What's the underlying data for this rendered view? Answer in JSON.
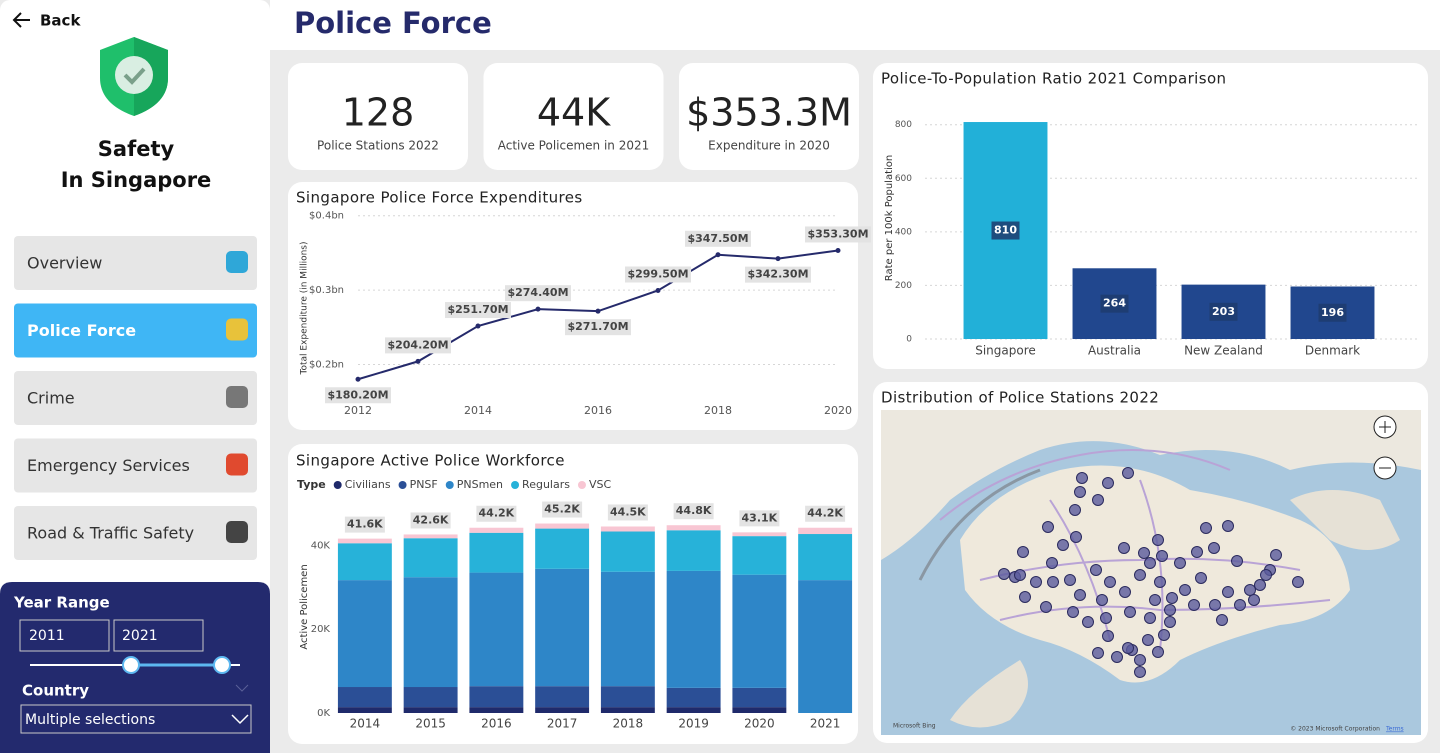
{
  "sidebar": {
    "back": "Back",
    "title_line1": "Safety",
    "title_line2": "In Singapore",
    "nav": [
      "Overview",
      "Police Force",
      "Crime",
      "Emergency Services",
      "Road & Traffic Safety"
    ],
    "selected": "Police Force",
    "year_range_label": "Year Range",
    "year_from": "2011",
    "year_to": "2021",
    "country_label": "Country",
    "country_value": "Multiple selections"
  },
  "header": {
    "title": "Police Force"
  },
  "kpis": [
    {
      "value": "128",
      "label": "Police Stations 2022"
    },
    {
      "value": "44K",
      "label": "Active Policemen in 2021"
    },
    {
      "value": "$353.3M",
      "label": "Expenditure in 2020"
    }
  ],
  "expenditure_chart": {
    "type": "line",
    "title": "Singapore Police Force Expenditures",
    "y_label": "Total Expenditure (in Millions)",
    "x": [
      2012,
      2013,
      2014,
      2015,
      2016,
      2017,
      2018,
      2019,
      2020
    ],
    "values": [
      180.2,
      204.2,
      251.7,
      274.4,
      271.7,
      299.5,
      347.5,
      342.3,
      353.3
    ],
    "value_labels": [
      "$180.20M",
      "$204.20M",
      "$251.70M",
      "$274.40M",
      "$271.70M",
      "$299.50M",
      "$347.50M",
      "$342.30M",
      "$353.30M"
    ],
    "color": "#252a6b",
    "xlim": [
      2012,
      2020
    ],
    "xticks": [
      2012,
      2014,
      2016,
      2018,
      2020
    ],
    "ylim": [
      155,
      405
    ],
    "yticks": [
      {
        "value": 200,
        "label": "$0.2bn"
      },
      {
        "value": 300,
        "label": "$0.3bn"
      },
      {
        "value": 400,
        "label": "$0.4bn"
      }
    ],
    "grid": true
  },
  "workforce_chart": {
    "type": "stacked_bar",
    "title": "Singapore Active Police Workforce",
    "legend_title": "Type",
    "y_label": "Active Policemen",
    "categories": [
      "2014",
      "2015",
      "2016",
      "2017",
      "2018",
      "2019",
      "2020",
      "2021"
    ],
    "series": [
      {
        "name": "Civilians",
        "color": "#1f2a6b",
        "values": [
          1400,
          1400,
          1400,
          1400,
          1400,
          1400,
          1400,
          null
        ]
      },
      {
        "name": "PNSF",
        "color": "#2b4f96",
        "values": [
          4800,
          4800,
          5000,
          5000,
          5000,
          4600,
          4600,
          null
        ]
      },
      {
        "name": "PNSmen",
        "color": "#2e86c8",
        "values": [
          25500,
          26200,
          27100,
          28000,
          27300,
          27900,
          27000,
          31700
        ]
      },
      {
        "name": "Regulars",
        "color": "#27b2d9",
        "values": [
          8800,
          9300,
          9500,
          9600,
          9600,
          9700,
          9200,
          11000
        ]
      },
      {
        "name": "VSC",
        "color": "#f8c6d3",
        "values": [
          1100,
          900,
          1200,
          1200,
          1200,
          1200,
          900,
          1500
        ]
      }
    ],
    "totals": [
      41600,
      42600,
      44200,
      45200,
      44500,
      44800,
      43100,
      44200
    ],
    "total_labels": [
      "41.6K",
      "42.6K",
      "44.2K",
      "45.2K",
      "44.5K",
      "44.8K",
      "43.1K",
      "44.2K"
    ],
    "ylim": [
      0,
      47000
    ],
    "yticks": [
      {
        "value": 0,
        "label": "0K"
      },
      {
        "value": 20000,
        "label": "20K"
      },
      {
        "value": 40000,
        "label": "40K"
      }
    ]
  },
  "ratio_chart": {
    "type": "bar",
    "title": "Police-To-Population Ratio 2021 Comparison",
    "y_label": "Rate per 100k Population",
    "categories": [
      "Singapore",
      "Australia",
      "New Zealand",
      "Denmark"
    ],
    "values": [
      810,
      264,
      203,
      196
    ],
    "colors": [
      "#22b0d8",
      "#21478e",
      "#21478e",
      "#21478e"
    ],
    "ylim": [
      0,
      840
    ],
    "yticks": [
      0,
      200,
      400,
      600,
      800
    ],
    "grid": true
  },
  "map": {
    "title": "Distribution of Police Stations 2022",
    "attribution": "Microsoft Bing",
    "copyright": "© 2023 Microsoft Corporation",
    "terms": "Terms"
  }
}
